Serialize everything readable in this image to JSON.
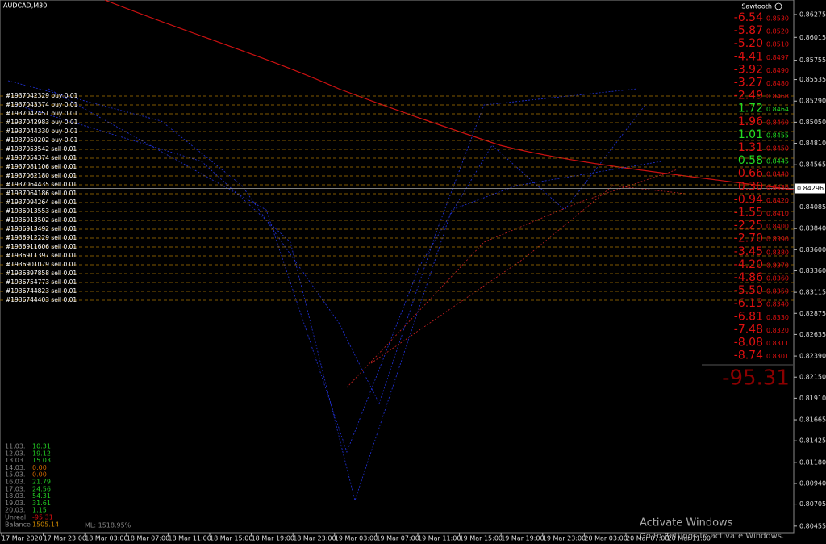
{
  "header": {
    "symbol": "AUDCAD,M30",
    "indicator": "Sawtooth"
  },
  "price_axis": {
    "ylim": [
      0.8038,
      0.8644
    ],
    "ticks": [
      {
        "value": 0.86275,
        "label": "0.86275"
      },
      {
        "value": 0.86015,
        "label": "0.86015"
      },
      {
        "value": 0.85755,
        "label": "0.85755"
      },
      {
        "value": 0.85535,
        "label": "0.85535"
      },
      {
        "value": 0.8529,
        "label": "0.85290"
      },
      {
        "value": 0.8505,
        "label": "0.85050"
      },
      {
        "value": 0.8481,
        "label": "0.84810"
      },
      {
        "value": 0.84565,
        "label": "0.84565"
      },
      {
        "value": 0.84085,
        "label": "0.84085"
      },
      {
        "value": 0.8384,
        "label": "0.83840"
      },
      {
        "value": 0.836,
        "label": "0.83600"
      },
      {
        "value": 0.8336,
        "label": "0.83360"
      },
      {
        "value": 0.83115,
        "label": "0.83115"
      },
      {
        "value": 0.82875,
        "label": "0.82875"
      },
      {
        "value": 0.82635,
        "label": "0.82635"
      },
      {
        "value": 0.8239,
        "label": "0.82390"
      },
      {
        "value": 0.8215,
        "label": "0.82150"
      },
      {
        "value": 0.8191,
        "label": "0.81910"
      },
      {
        "value": 0.81665,
        "label": "0.81665"
      },
      {
        "value": 0.81425,
        "label": "0.81425"
      },
      {
        "value": 0.8118,
        "label": "0.81180"
      },
      {
        "value": 0.8094,
        "label": "0.80940"
      },
      {
        "value": 0.80705,
        "label": "0.80705"
      },
      {
        "value": 0.80455,
        "label": "0.80455"
      }
    ],
    "current": 0.84296
  },
  "time_axis": [
    "17 Mar 2020",
    "17 Mar 23:00",
    "18 Mar 03:00",
    "18 Mar 07:00",
    "18 Mar 11:00",
    "18 Mar 15:00",
    "18 Mar 19:00",
    "18 Mar 23:00",
    "19 Mar 03:00",
    "19 Mar 07:00",
    "19 Mar 11:00",
    "19 Mar 15:00",
    "19 Mar 19:00",
    "19 Mar 23:00",
    "20 Mar 03:00",
    "20 Mar 07:00",
    "20 Mar 11:00"
  ],
  "orders": [
    "#1937042329 buy 0.01",
    "#1937043374 buy 0.01",
    "#1937042451 buy 0.01",
    "#1937042983 buy 0.01",
    "#1937044330 buy 0.01",
    "#1937050202 buy 0.01",
    "#1937053542 sell 0.01",
    "#1937054374 sell 0.01",
    "#1937081106 sell 0.01",
    "#1937062180 sell 0.01",
    "#1937064435 sell 0.01",
    "#1937064186 sell 0.01",
    "#1937094264 sell 0.01",
    "#1936913553 sell 0.01",
    "#1936913502 sell 0.01",
    "#1936913492 sell 0.01",
    "#1936912229 sell 0.01",
    "#1936911606 sell 0.01",
    "#1936911397 sell 0.01",
    "#1936901079 sell 0.01",
    "#1936897858 sell 0.01",
    "#1936754773 sell 0.01",
    "#1936744823 sell 0.01",
    "#1936744403 sell 0.01"
  ],
  "ladder": [
    {
      "pl": "-6.54",
      "price": "0.8530",
      "color": "#e01010"
    },
    {
      "pl": "-5.87",
      "price": "0.8520",
      "color": "#e01010"
    },
    {
      "pl": "-5.20",
      "price": "0.8510",
      "color": "#e01010"
    },
    {
      "pl": "-4.41",
      "price": "0.8497",
      "color": "#e01010"
    },
    {
      "pl": "-3.92",
      "price": "0.8490",
      "color": "#e01010"
    },
    {
      "pl": "-3.27",
      "price": "0.8480",
      "color": "#e01010"
    },
    {
      "pl": "-2.49",
      "price": "0.8468",
      "color": "#e01010"
    },
    {
      "pl": "1.72",
      "price": "0.8464",
      "color": "#22dd22"
    },
    {
      "pl": "1.96",
      "price": "0.8460",
      "color": "#e01010"
    },
    {
      "pl": "1.01",
      "price": "0.8455",
      "color": "#22dd22"
    },
    {
      "pl": "1.31",
      "price": "0.8450",
      "color": "#e01010"
    },
    {
      "pl": "0.58",
      "price": "0.8445",
      "color": "#22dd22"
    },
    {
      "pl": "0.66",
      "price": "0.8440",
      "color": "#e01010"
    },
    {
      "pl": "0.30",
      "price": "0.8436",
      "color": "#e01010"
    },
    {
      "pl": "-0.94",
      "price": "0.8420",
      "color": "#e01010"
    },
    {
      "pl": "-1.55",
      "price": "0.8410",
      "color": "#e01010"
    },
    {
      "pl": "-2.25",
      "price": "0.8400",
      "color": "#e01010"
    },
    {
      "pl": "-2.70",
      "price": "0.8390",
      "color": "#e01010"
    },
    {
      "pl": "-3.45",
      "price": "0.8380",
      "color": "#e01010"
    },
    {
      "pl": "-4.20",
      "price": "0.8370",
      "color": "#e01010"
    },
    {
      "pl": "-4.86",
      "price": "0.8360",
      "color": "#e01010"
    },
    {
      "pl": "-5.50",
      "price": "0.8350",
      "color": "#e01010"
    },
    {
      "pl": "-6.13",
      "price": "0.8340",
      "color": "#e01010"
    },
    {
      "pl": "-6.81",
      "price": "0.8330",
      "color": "#e01010"
    },
    {
      "pl": "-7.48",
      "price": "0.8320",
      "color": "#e01010"
    },
    {
      "pl": "-8.08",
      "price": "0.8311",
      "color": "#e01010"
    },
    {
      "pl": "-8.74",
      "price": "0.8301",
      "color": "#e01010"
    }
  ],
  "total": "-95.31",
  "stats": [
    {
      "label": "11.03.",
      "value": "10.31",
      "color": "#22cc22"
    },
    {
      "label": "12.03.",
      "value": "19.12",
      "color": "#22cc22"
    },
    {
      "label": "13.03.",
      "value": "15.03",
      "color": "#22cc22"
    },
    {
      "label": "14.03.",
      "value": "0.00",
      "color": "#cc6600"
    },
    {
      "label": "15.03.",
      "value": "0.00",
      "color": "#cc6600"
    },
    {
      "label": "16.03.",
      "value": "21.79",
      "color": "#22cc22"
    },
    {
      "label": "17.03.",
      "value": "24.56",
      "color": "#22cc22"
    },
    {
      "label": "18.03.",
      "value": "54.31",
      "color": "#22cc22"
    },
    {
      "label": "19.03.",
      "value": "31.61",
      "color": "#22cc22"
    },
    {
      "label": "20.03.",
      "value": "1.15",
      "color": "#22cc22"
    },
    {
      "label": "Unreal.",
      "value": "-95.31",
      "color": "#e01010"
    },
    {
      "label": "Balance",
      "value": "1505.14",
      "color": "#cc8800"
    }
  ],
  "margin_level": "ML: 1518.95%",
  "watermark": {
    "title": "Activate Windows",
    "subtitle": "Go to Settings to activate Windows."
  }
}
